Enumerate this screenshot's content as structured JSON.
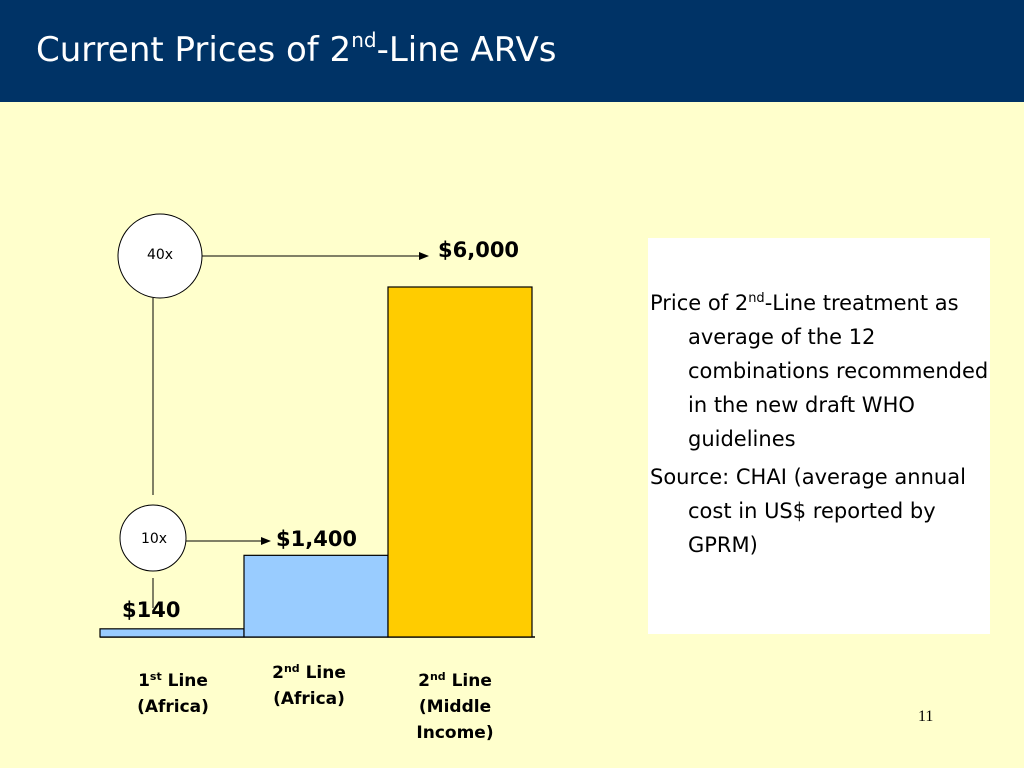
{
  "header": {
    "title_pre": "Current Prices of 2",
    "title_sup": "nd",
    "title_post": "-Line ARVs"
  },
  "chart_data": {
    "type": "bar",
    "categories": [
      "1st Line (Africa)",
      "2nd Line (Africa)",
      "2nd Line (Middle Income)"
    ],
    "values": [
      140,
      1400,
      6000
    ],
    "value_labels": [
      "$140",
      "$1,400",
      "$6,000"
    ],
    "colors": [
      "#99CCFF",
      "#99CCFF",
      "#FFCC00"
    ],
    "ratios": [
      {
        "label": "10x",
        "from": 140,
        "to": 1400
      },
      {
        "label": "40x",
        "from": 140,
        "to": 6000
      }
    ],
    "title": "",
    "xlabel": "",
    "ylabel": "",
    "ylim": [
      0,
      6000
    ],
    "grid": false
  },
  "categories_display": [
    {
      "num": "1",
      "sup": "st",
      "line": " Line",
      "sub": "(Africa)"
    },
    {
      "num": "2",
      "sup": "nd",
      "line": " Line",
      "sub": "(Africa)"
    },
    {
      "num": "2",
      "sup": "nd",
      "line": " Line",
      "sub": "(Middle",
      "sub2": "Income)"
    }
  ],
  "note": {
    "p1_pre": "Price of 2",
    "p1_sup": "nd",
    "p1_post": "-Line treatment as average of the 12 combinations recommended in the new draft WHO guidelines",
    "p2": "Source: CHAI (average annual cost in US$ reported by GPRM)"
  },
  "page_number": "11"
}
